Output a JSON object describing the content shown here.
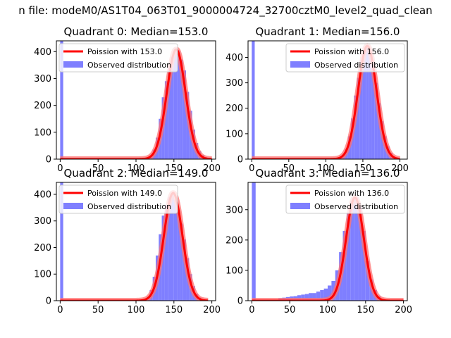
{
  "figure": {
    "suptitle": "n file: modeM0/AS1T04_063T01_9000004724_32700cztM0_level2_quad_clean"
  },
  "chart_data": [
    {
      "type": "bar",
      "title": "Quadrant 0: Median=153.0",
      "xlim": [
        -5,
        205
      ],
      "ylim": [
        0,
        440
      ],
      "xticks": [
        0,
        50,
        100,
        150,
        200
      ],
      "yticks": [
        0,
        100,
        200,
        300,
        400
      ],
      "legend": {
        "position": "upper-left",
        "entries": [
          "Poission with 153.0",
          "Observed distribution"
        ]
      },
      "series": [
        {
          "name": "Observed distribution",
          "kind": "histogram",
          "color": "#7f7fff",
          "bin_start": [
            0,
            110,
            114,
            118,
            122,
            126,
            130,
            134,
            138,
            142,
            146,
            150,
            154,
            158,
            162,
            166,
            170,
            174,
            178,
            182,
            186,
            190,
            194
          ],
          "bin_width": 4,
          "counts": [
            440,
            5,
            8,
            12,
            35,
            80,
            150,
            230,
            290,
            340,
            380,
            410,
            405,
            370,
            330,
            250,
            180,
            110,
            60,
            30,
            15,
            8,
            3
          ]
        },
        {
          "name": "Poission with 153.0",
          "kind": "poisson_curve",
          "color": "#ff0000",
          "mean": 153.0,
          "peak": 408,
          "x_range": [
            0,
            200
          ]
        }
      ]
    },
    {
      "type": "bar",
      "title": "Quadrant 1: Median=156.0",
      "xlim": [
        -5,
        210
      ],
      "ylim": [
        0,
        465
      ],
      "xticks": [
        0,
        50,
        100,
        150,
        200
      ],
      "yticks": [
        0,
        100,
        200,
        300,
        400
      ],
      "legend": {
        "position": "upper-right",
        "entries": [
          "Poission with 156.0",
          "Observed distribution"
        ]
      },
      "series": [
        {
          "name": "Observed distribution",
          "kind": "histogram",
          "color": "#7f7fff",
          "bin_start": [
            0,
            114,
            118,
            122,
            126,
            130,
            134,
            138,
            142,
            146,
            150,
            154,
            158,
            162,
            166,
            170,
            174,
            178,
            182,
            186,
            190,
            194
          ],
          "bin_width": 4,
          "counts": [
            465,
            3,
            6,
            15,
            40,
            90,
            160,
            250,
            320,
            390,
            430,
            445,
            420,
            370,
            300,
            220,
            150,
            90,
            50,
            25,
            10,
            4
          ]
        },
        {
          "name": "Poission with 156.0",
          "kind": "poisson_curve",
          "color": "#ff0000",
          "mean": 156.0,
          "peak": 445,
          "x_range": [
            0,
            200
          ]
        }
      ]
    },
    {
      "type": "bar",
      "title": "Quadrant 2: Median=149.0",
      "xlim": [
        -5,
        205
      ],
      "ylim": [
        0,
        445
      ],
      "xticks": [
        0,
        50,
        100,
        150,
        200
      ],
      "yticks": [
        0,
        100,
        200,
        300,
        400
      ],
      "legend": {
        "position": "upper-left",
        "entries": [
          "Poission with 149.0",
          "Observed distribution"
        ]
      },
      "series": [
        {
          "name": "Observed distribution",
          "kind": "histogram",
          "color": "#7f7fff",
          "bin_start": [
            0,
            106,
            110,
            114,
            118,
            122,
            126,
            130,
            134,
            138,
            142,
            146,
            150,
            154,
            158,
            162,
            166,
            170,
            174,
            178,
            182,
            186
          ],
          "bin_width": 4,
          "counts": [
            445,
            4,
            8,
            15,
            40,
            90,
            170,
            250,
            320,
            360,
            390,
            400,
            380,
            340,
            290,
            230,
            160,
            100,
            55,
            25,
            12,
            5
          ]
        },
        {
          "name": "Poission with 149.0",
          "kind": "poisson_curve",
          "color": "#ff0000",
          "mean": 149.0,
          "peak": 405,
          "x_range": [
            0,
            195
          ]
        }
      ]
    },
    {
      "type": "bar",
      "title": "Quadrant 3: Median=136.0",
      "xlim": [
        -5,
        205
      ],
      "ylim": [
        0,
        390
      ],
      "xticks": [
        0,
        50,
        100,
        150,
        200
      ],
      "yticks": [
        0,
        100,
        200,
        300
      ],
      "legend": {
        "position": "upper-right",
        "entries": [
          "Poission with 136.0",
          "Observed distribution"
        ]
      },
      "series": [
        {
          "name": "Observed distribution",
          "kind": "histogram",
          "color": "#7f7fff",
          "bin_start": [
            0,
            30,
            35,
            40,
            45,
            50,
            55,
            60,
            65,
            70,
            75,
            80,
            85,
            90,
            95,
            100,
            105,
            110,
            115,
            120,
            125,
            130,
            135,
            140,
            145,
            150,
            155,
            160,
            165,
            170,
            175,
            180
          ],
          "bin_width": 5,
          "counts": [
            390,
            3,
            8,
            10,
            12,
            14,
            15,
            18,
            20,
            22,
            25,
            25,
            30,
            35,
            40,
            50,
            65,
            100,
            160,
            230,
            290,
            330,
            340,
            310,
            230,
            130,
            70,
            35,
            15,
            6,
            3,
            1
          ]
        },
        {
          "name": "Poission with 136.0",
          "kind": "poisson_curve",
          "color": "#ff0000",
          "mean": 136.0,
          "peak": 340,
          "x_range": [
            0,
            200
          ]
        }
      ]
    }
  ]
}
